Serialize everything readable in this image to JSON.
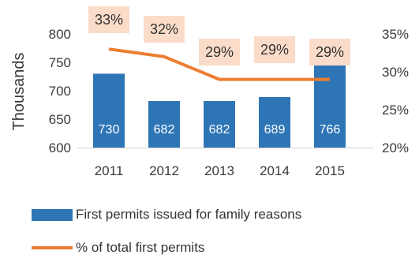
{
  "chart_data": {
    "type": "bar+line",
    "categories": [
      "2011",
      "2012",
      "2013",
      "2014",
      "2015"
    ],
    "series": [
      {
        "name": "First permits issued for family reasons",
        "type": "bar",
        "axis": "left",
        "values": [
          730,
          682,
          682,
          689,
          766
        ],
        "labels": [
          "730",
          "682",
          "682",
          "689",
          "766"
        ],
        "color": "#2e75b6"
      },
      {
        "name": "% of total first permits",
        "type": "line",
        "axis": "right",
        "values": [
          33,
          32,
          29,
          29,
          29
        ],
        "labels": [
          "33%",
          "32%",
          "29%",
          "29%",
          "29%"
        ],
        "color": "#ed7d31"
      }
    ],
    "ylabel": "Thousands",
    "ylim": [
      600,
      800
    ],
    "yticks": [
      "600",
      "650",
      "700",
      "750",
      "800"
    ],
    "y2lim": [
      20,
      35
    ],
    "y2ticks": [
      "20%",
      "25%",
      "30%",
      "35%"
    ],
    "label_box_color": "#fbdcc9",
    "legend_position": "bottom",
    "grid": false
  }
}
